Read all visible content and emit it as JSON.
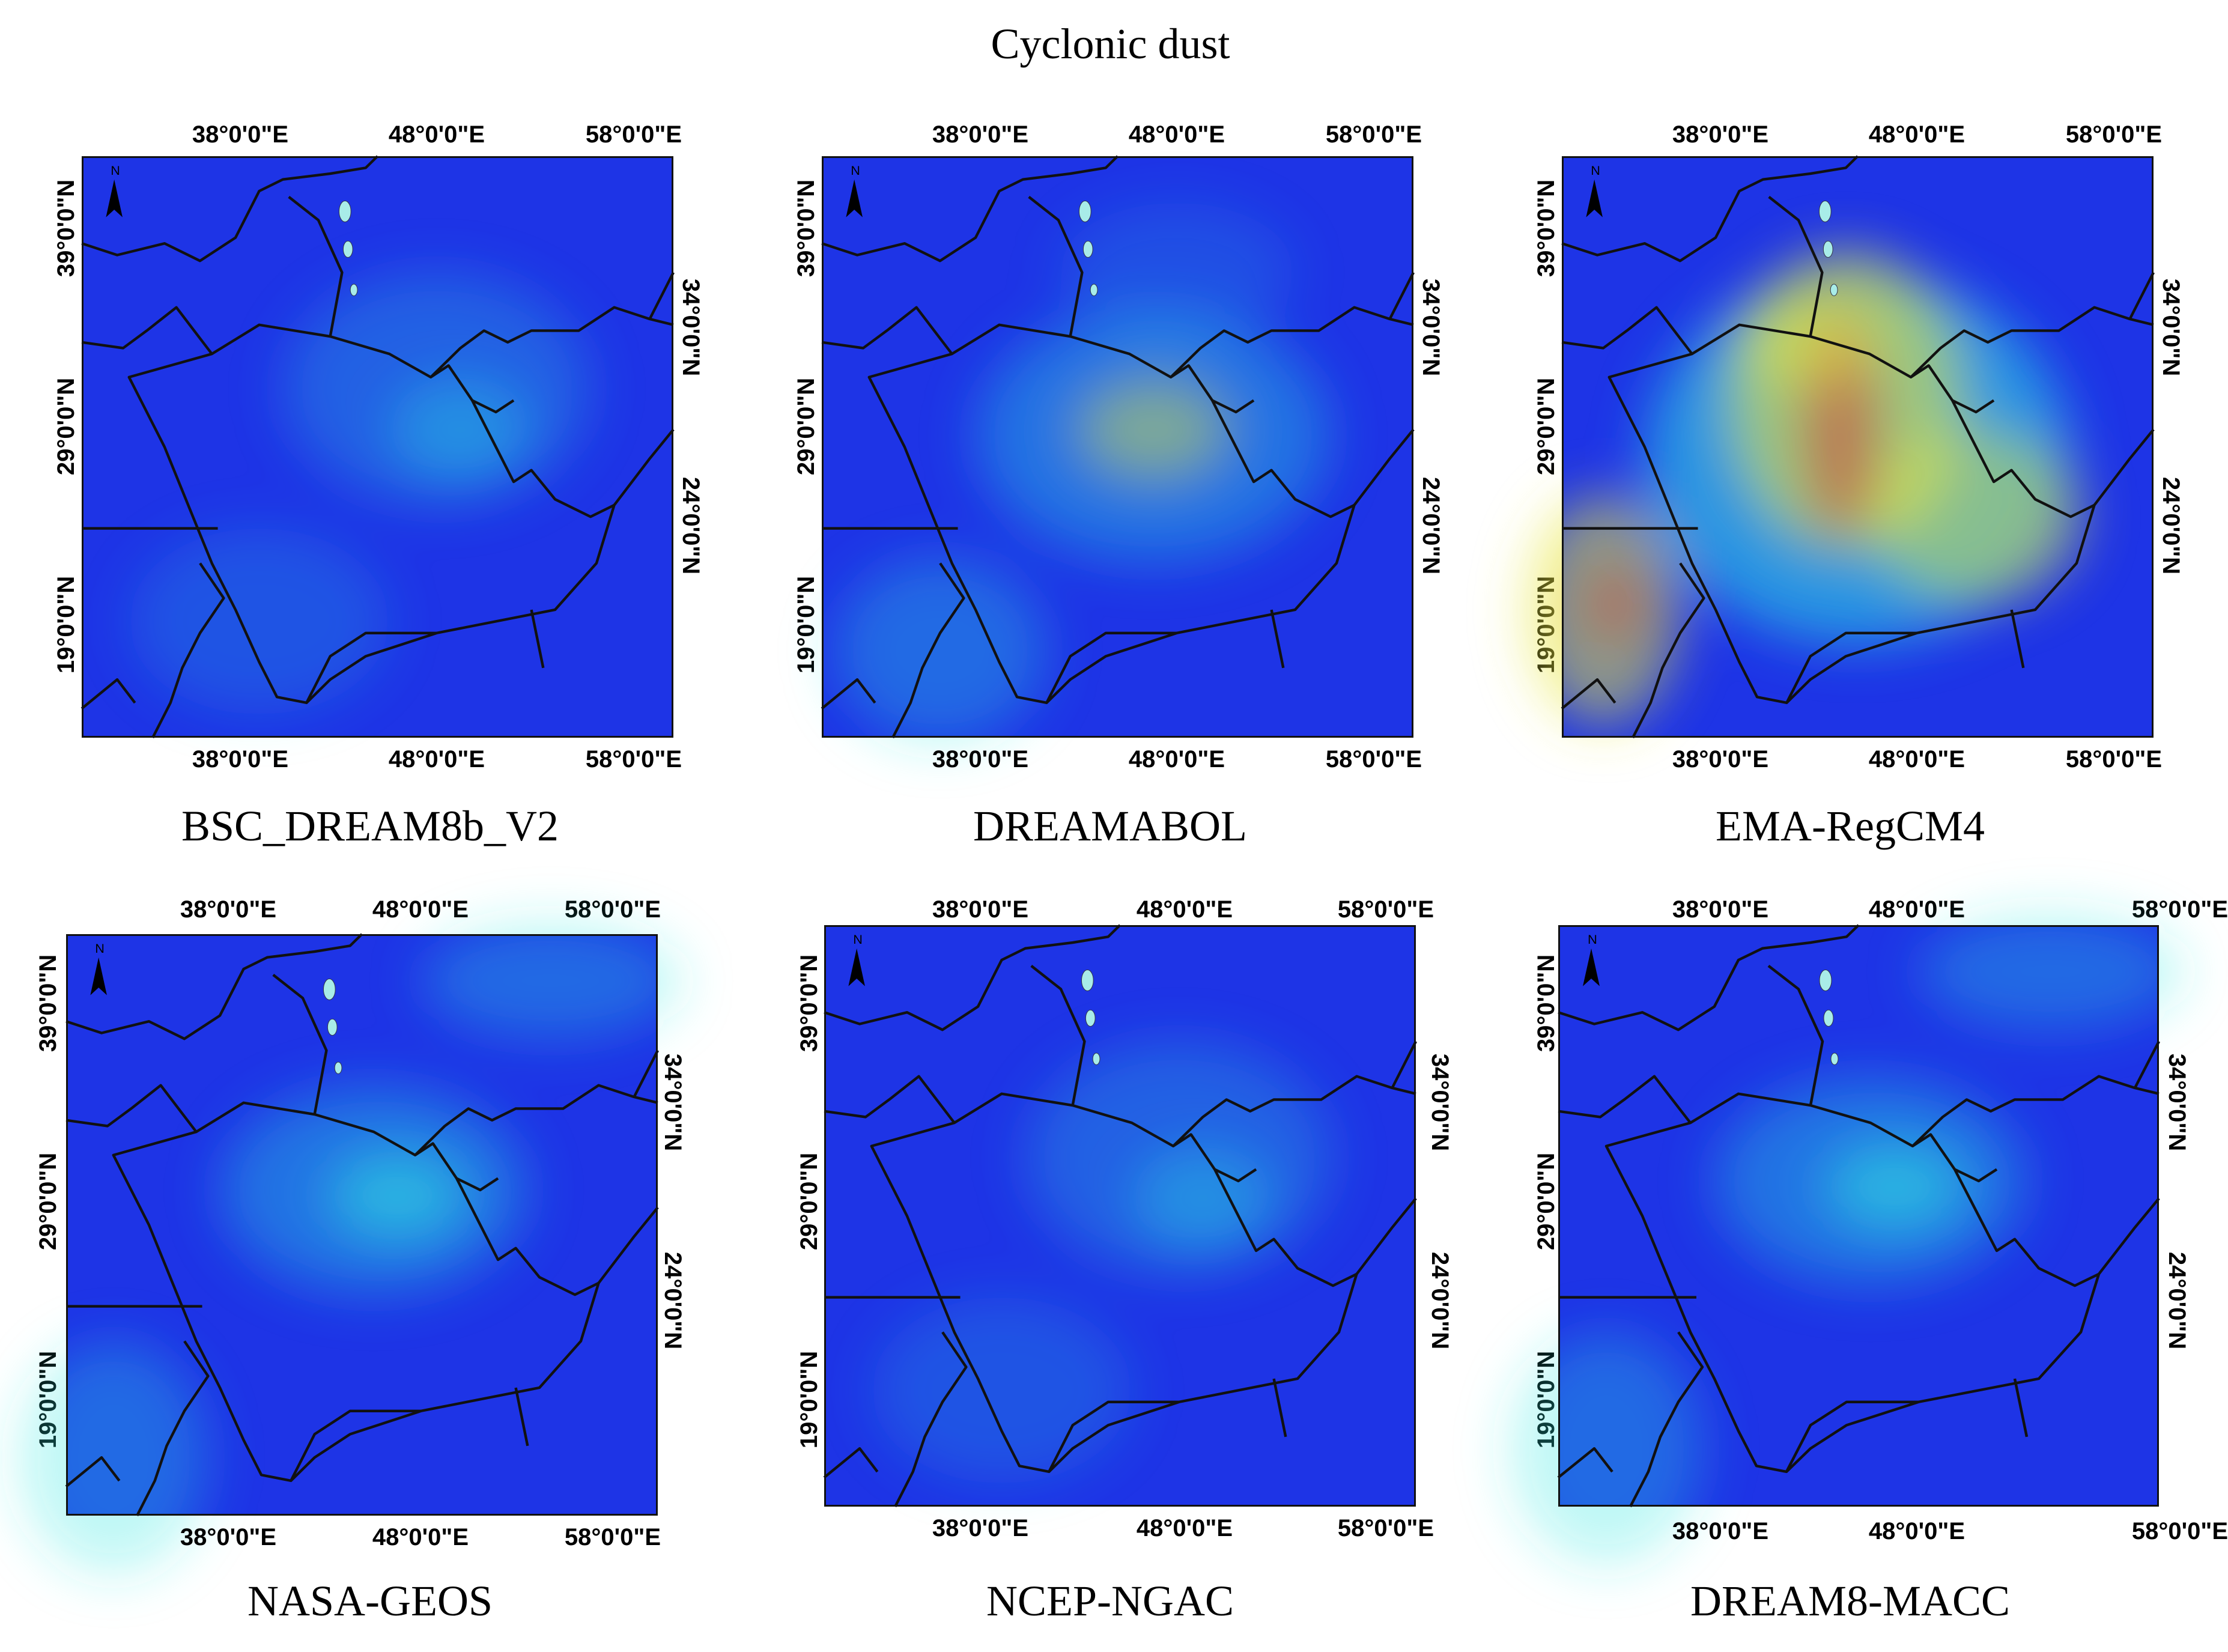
{
  "title": "Cyclonic dust",
  "colors": {
    "background": "#1e34e6",
    "low": "#1e34e6",
    "mid": "#2ee8e0",
    "high": "#e8e840",
    "peak": "#e02020",
    "border": "#111111",
    "water": "#a8ece8"
  },
  "icons": {
    "north_arrow": "north-arrow-icon"
  },
  "north_label": "N",
  "panels": [
    {
      "name": "BSC_DREAM8b_V2",
      "lon_labels": [
        "38°0'0\"E",
        "48°0'0\"E",
        "58°0'0\"E"
      ],
      "lat_left": [
        "39°0'0\"N",
        "29°0'0\"N",
        "19°0'0\"N"
      ],
      "lat_right": [
        "34°0'0\"N",
        "24°0'0\"N"
      ],
      "dust_level": "low"
    },
    {
      "name": "DREAMABOL",
      "lon_labels": [
        "38°0'0\"E",
        "48°0'0\"E",
        "58°0'0\"E"
      ],
      "lat_left": [
        "39°0'0\"N",
        "29°0'0\"N",
        "19°0'0\"N"
      ],
      "lat_right": [
        "34°0'0\"N",
        "24°0'0\"N"
      ],
      "dust_level": "moderate"
    },
    {
      "name": "EMA-RegCM4",
      "lon_labels": [
        "38°0'0\"E",
        "48°0'0\"E",
        "58°0'0\"E"
      ],
      "lat_left": [
        "39°0'0\"N",
        "29°0'0\"N",
        "19°0'0\"N"
      ],
      "lat_right": [
        "34°0'0\"N",
        "24°0'0\"N"
      ],
      "dust_level": "high"
    },
    {
      "name": "NASA-GEOS",
      "lon_labels": [
        "38°0'0\"E",
        "48°0'0\"E",
        "58°0'0\"E"
      ],
      "lat_left": [
        "39°0'0\"N",
        "29°0'0\"N",
        "19°0'0\"N"
      ],
      "lat_right": [
        "34°0'0\"N",
        "24°0'0\"N"
      ],
      "dust_level": "low-moderate"
    },
    {
      "name": "NCEP-NGAC",
      "lon_labels": [
        "38°0'0\"E",
        "48°0'0\"E",
        "58°0'0\"E"
      ],
      "lat_left": [
        "39°0'0\"N",
        "29°0'0\"N",
        "19°0'0\"N"
      ],
      "lat_right": [
        "34°0'0\"N",
        "24°0'0\"N"
      ],
      "dust_level": "low"
    },
    {
      "name": "DREAM8-MACC",
      "lon_labels": [
        "38°0'0\"E",
        "48°0'0\"E",
        "58°0'0\"E"
      ],
      "lat_left": [
        "39°0'0\"N",
        "29°0'0\"N",
        "19°0'0\"N"
      ],
      "lat_right": [
        "34°0'0\"N",
        "24°0'0\"N"
      ],
      "dust_level": "low-moderate"
    }
  ]
}
